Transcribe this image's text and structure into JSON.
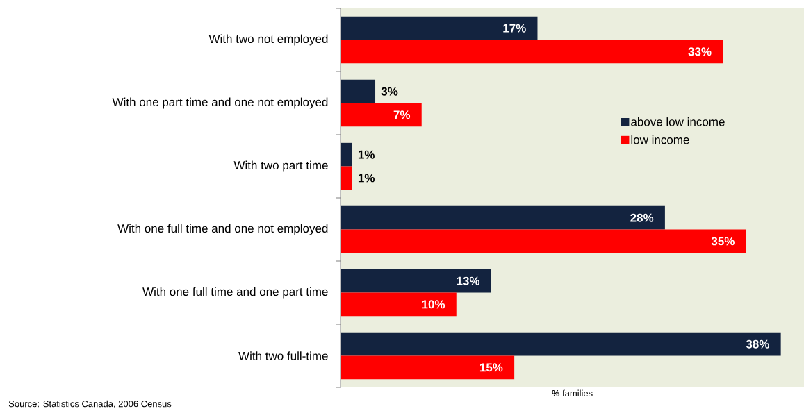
{
  "chart_data": {
    "type": "bar",
    "orientation": "horizontal",
    "categories": [
      "With two not employed",
      "With one part time and one not employed",
      "With two part time",
      "With one full time and one not employed",
      "With one full time and one part time",
      "With two full-time"
    ],
    "series": [
      {
        "name": "above low income",
        "color": "#13233f",
        "values": [
          17,
          3,
          1,
          28,
          13,
          38
        ],
        "value_labels": [
          "17%",
          "3%",
          "1%",
          "28%",
          "13%",
          "38%"
        ]
      },
      {
        "name": "low income",
        "color": "#ff0000",
        "values": [
          33,
          7,
          1,
          35,
          10,
          15
        ],
        "value_labels": [
          "33%",
          "7%",
          "1%",
          "35%",
          "10%",
          "15%"
        ]
      }
    ],
    "xlim": [
      0,
      40
    ],
    "xlabel": "**%** families",
    "legend": "right",
    "annotations": [
      "Source: Statistics Canada, 2006 Census"
    ]
  }
}
